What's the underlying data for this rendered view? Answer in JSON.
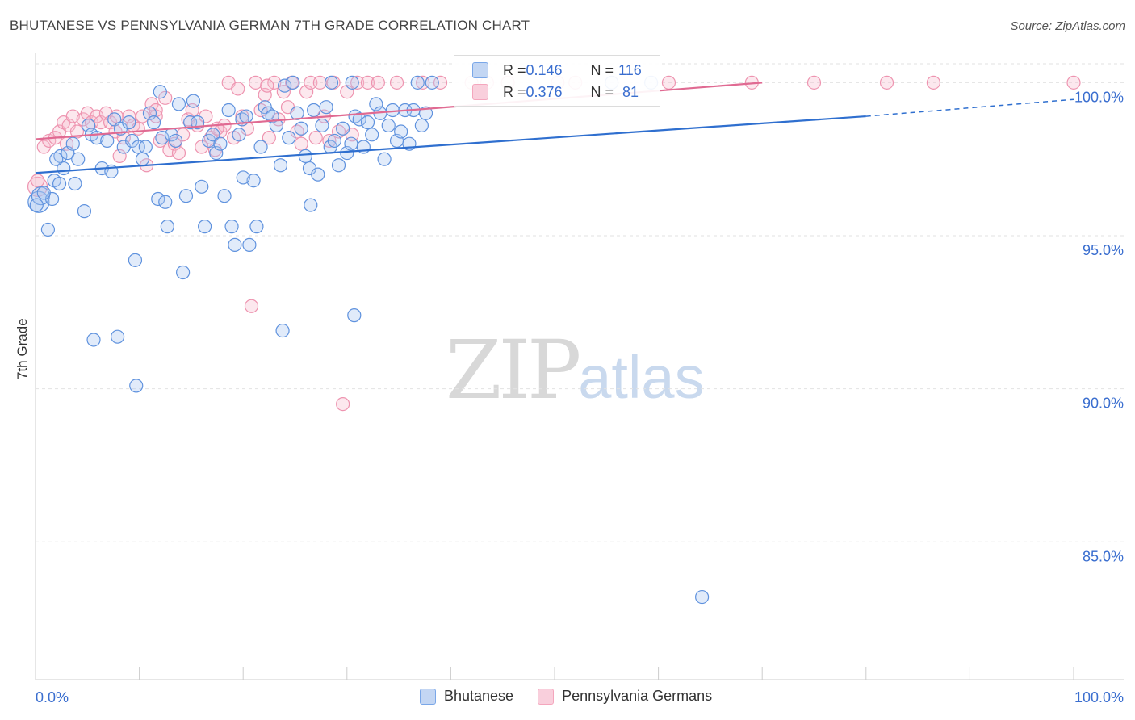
{
  "title": "BHUTANESE VS PENNSYLVANIA GERMAN 7TH GRADE CORRELATION CHART",
  "source": "Source: ZipAtlas.com",
  "watermark": {
    "zip": "ZIP",
    "atlas": "atlas"
  },
  "colors": {
    "blue": "#7aa7e8",
    "blue_line": "#2f6fcf",
    "pink": "#f4a6bd",
    "pink_line": "#e06a92",
    "axis_text": "#3a6ecf"
  },
  "stats": {
    "blue": {
      "r_label": "R = ",
      "r_value": "0.146",
      "n_label": "N = ",
      "n_value": "116"
    },
    "pink": {
      "r_label": "R = ",
      "r_value": "0.376",
      "n_label": "N = ",
      "n_value": " 81"
    }
  },
  "legend": {
    "blue_label": "Bhutanese",
    "pink_label": "Pennsylvania Germans"
  },
  "chart_data": {
    "type": "scatter",
    "xlabel": "",
    "ylabel": "7th Grade",
    "xlim": [
      0,
      100
    ],
    "ylim": [
      80.5,
      100.8
    ],
    "x_tick_labels": [
      "0.0%",
      "100.0%"
    ],
    "y_ticks": [
      {
        "value": 100,
        "label": "100.0%"
      },
      {
        "value": 95,
        "label": "95.0%"
      },
      {
        "value": 90,
        "label": "90.0%"
      },
      {
        "value": 85,
        "label": "85.0%"
      }
    ],
    "series": [
      {
        "name": "Bhutanese",
        "color": "#7aa7e8",
        "trend": {
          "x0": 0,
          "y0": 97.05,
          "x1": 80,
          "y1": 98.9,
          "dash_to": 100,
          "dash_y": 99.45
        },
        "points": [
          [
            0.3,
            96.1
          ],
          [
            0.5,
            96.3
          ],
          [
            1.2,
            95.2
          ],
          [
            1.6,
            96.2
          ],
          [
            1.8,
            96.8
          ],
          [
            2.3,
            96.7
          ],
          [
            2.4,
            97.6
          ],
          [
            2.7,
            97.2
          ],
          [
            3.1,
            97.7
          ],
          [
            3.6,
            98.0
          ],
          [
            3.8,
            96.7
          ],
          [
            4.1,
            97.5
          ],
          [
            4.7,
            95.8
          ],
          [
            5.1,
            98.6
          ],
          [
            5.4,
            98.3
          ],
          [
            5.9,
            98.2
          ],
          [
            6.4,
            97.2
          ],
          [
            6.9,
            98.1
          ],
          [
            7.3,
            97.1
          ],
          [
            7.6,
            98.8
          ],
          [
            8.2,
            98.5
          ],
          [
            8.5,
            97.9
          ],
          [
            9.0,
            98.7
          ],
          [
            9.3,
            98.1
          ],
          [
            9.6,
            94.2
          ],
          [
            9.9,
            97.9
          ],
          [
            10.3,
            97.5
          ],
          [
            10.6,
            97.9
          ],
          [
            11.0,
            99.0
          ],
          [
            11.4,
            98.7
          ],
          [
            11.8,
            96.2
          ],
          [
            12.2,
            98.2
          ],
          [
            12.5,
            96.1
          ],
          [
            12.7,
            95.3
          ],
          [
            13.1,
            98.3
          ],
          [
            13.5,
            98.1
          ],
          [
            13.8,
            99.3
          ],
          [
            14.2,
            93.8
          ],
          [
            14.5,
            96.3
          ],
          [
            14.9,
            98.7
          ],
          [
            15.2,
            99.4
          ],
          [
            15.6,
            98.7
          ],
          [
            16.0,
            96.6
          ],
          [
            16.3,
            95.3
          ],
          [
            16.7,
            98.1
          ],
          [
            17.1,
            98.3
          ],
          [
            17.4,
            97.7
          ],
          [
            17.8,
            98.0
          ],
          [
            18.2,
            96.3
          ],
          [
            18.6,
            99.1
          ],
          [
            18.9,
            95.3
          ],
          [
            19.2,
            94.7
          ],
          [
            19.6,
            98.3
          ],
          [
            19.9,
            98.8
          ],
          [
            20.3,
            98.9
          ],
          [
            20.6,
            94.7
          ],
          [
            21.0,
            96.8
          ],
          [
            21.3,
            95.3
          ],
          [
            21.7,
            97.9
          ],
          [
            22.1,
            99.2
          ],
          [
            22.4,
            99.0
          ],
          [
            22.8,
            98.9
          ],
          [
            23.2,
            98.6
          ],
          [
            23.6,
            97.3
          ],
          [
            24.0,
            99.9
          ],
          [
            24.4,
            98.2
          ],
          [
            24.8,
            100.0
          ],
          [
            25.2,
            99.0
          ],
          [
            25.6,
            98.5
          ],
          [
            26.0,
            97.6
          ],
          [
            26.4,
            97.2
          ],
          [
            26.8,
            99.1
          ],
          [
            27.2,
            97.0
          ],
          [
            27.6,
            98.6
          ],
          [
            28.0,
            99.2
          ],
          [
            28.4,
            97.9
          ],
          [
            28.8,
            98.1
          ],
          [
            29.2,
            97.3
          ],
          [
            29.6,
            98.5
          ],
          [
            30.0,
            97.7
          ],
          [
            30.4,
            98.0
          ],
          [
            30.8,
            98.9
          ],
          [
            31.2,
            98.8
          ],
          [
            31.6,
            97.9
          ],
          [
            32.0,
            98.7
          ],
          [
            32.4,
            98.3
          ],
          [
            32.8,
            99.3
          ],
          [
            33.2,
            99.0
          ],
          [
            33.6,
            97.5
          ],
          [
            34.0,
            98.6
          ],
          [
            34.4,
            99.1
          ],
          [
            34.8,
            98.1
          ],
          [
            35.2,
            98.4
          ],
          [
            35.6,
            99.1
          ],
          [
            36.0,
            98.0
          ],
          [
            36.4,
            99.1
          ],
          [
            36.8,
            100.0
          ],
          [
            37.2,
            98.6
          ],
          [
            37.6,
            99.0
          ],
          [
            38.2,
            100.0
          ],
          [
            5.6,
            91.6
          ],
          [
            7.9,
            91.7
          ],
          [
            9.7,
            90.1
          ],
          [
            23.8,
            91.9
          ],
          [
            30.7,
            92.4
          ],
          [
            20.0,
            96.9
          ],
          [
            26.5,
            96.0
          ],
          [
            12.0,
            99.7
          ],
          [
            28.5,
            100.0
          ],
          [
            30.5,
            100.0
          ],
          [
            55.5,
            100.0
          ],
          [
            59.3,
            100.0
          ],
          [
            64.2,
            83.2
          ],
          [
            0.1,
            96.0
          ],
          [
            0.8,
            96.4
          ],
          [
            2.0,
            97.5
          ]
        ],
        "radii": {
          "default": 8,
          "0": 13,
          "1": 11
        }
      },
      {
        "name": "Pennsylvania Germans",
        "color": "#f4a6bd",
        "trend": {
          "x0": 0,
          "y0": 98.15,
          "x1": 70,
          "y1": 100.0
        },
        "points": [
          [
            0.2,
            96.6
          ],
          [
            0.8,
            97.9
          ],
          [
            1.3,
            98.1
          ],
          [
            1.9,
            98.2
          ],
          [
            2.3,
            98.4
          ],
          [
            2.7,
            98.7
          ],
          [
            3.2,
            98.6
          ],
          [
            3.6,
            98.9
          ],
          [
            4.0,
            98.4
          ],
          [
            4.6,
            98.8
          ],
          [
            5.0,
            99.0
          ],
          [
            5.4,
            98.7
          ],
          [
            5.9,
            98.9
          ],
          [
            6.3,
            98.7
          ],
          [
            6.8,
            99.0
          ],
          [
            7.2,
            98.7
          ],
          [
            7.7,
            98.4
          ],
          [
            8.1,
            97.6
          ],
          [
            8.5,
            98.2
          ],
          [
            9.0,
            98.9
          ],
          [
            9.4,
            98.6
          ],
          [
            9.9,
            98.5
          ],
          [
            10.3,
            98.9
          ],
          [
            10.7,
            97.3
          ],
          [
            11.2,
            99.3
          ],
          [
            11.6,
            98.9
          ],
          [
            12.0,
            98.1
          ],
          [
            12.5,
            99.5
          ],
          [
            12.9,
            97.8
          ],
          [
            13.4,
            98.0
          ],
          [
            13.8,
            97.7
          ],
          [
            14.2,
            98.3
          ],
          [
            14.7,
            98.8
          ],
          [
            15.1,
            99.1
          ],
          [
            15.6,
            98.6
          ],
          [
            16.0,
            97.9
          ],
          [
            16.4,
            98.9
          ],
          [
            16.9,
            98.2
          ],
          [
            17.3,
            97.8
          ],
          [
            17.8,
            98.4
          ],
          [
            18.2,
            98.6
          ],
          [
            18.6,
            100.0
          ],
          [
            19.1,
            98.2
          ],
          [
            19.5,
            99.8
          ],
          [
            19.9,
            98.9
          ],
          [
            20.4,
            98.5
          ],
          [
            20.8,
            92.7
          ],
          [
            21.2,
            100.0
          ],
          [
            21.7,
            99.1
          ],
          [
            22.1,
            99.6
          ],
          [
            22.5,
            98.2
          ],
          [
            23.0,
            100.0
          ],
          [
            23.4,
            98.8
          ],
          [
            23.9,
            99.7
          ],
          [
            24.3,
            99.2
          ],
          [
            24.7,
            100.0
          ],
          [
            25.2,
            98.4
          ],
          [
            25.6,
            98.0
          ],
          [
            26.1,
            99.7
          ],
          [
            26.5,
            100.0
          ],
          [
            27.0,
            98.2
          ],
          [
            27.4,
            100.0
          ],
          [
            27.8,
            98.9
          ],
          [
            28.3,
            98.1
          ],
          [
            28.7,
            100.0
          ],
          [
            29.2,
            98.4
          ],
          [
            29.6,
            89.5
          ],
          [
            30.0,
            99.7
          ],
          [
            30.5,
            98.3
          ],
          [
            31.0,
            100.0
          ],
          [
            32.0,
            100.0
          ],
          [
            34.8,
            100.0
          ],
          [
            39.0,
            100.0
          ],
          [
            42.0,
            100.0
          ],
          [
            45.5,
            100.0
          ],
          [
            50.3,
            100.0
          ],
          [
            61.0,
            100.0
          ],
          [
            69.0,
            100.0
          ],
          [
            75.0,
            100.0
          ],
          [
            82.0,
            100.0
          ],
          [
            86.5,
            100.0
          ]
        ],
        "extra_points": [
          [
            11.6,
            99.1
          ],
          [
            17.5,
            98.5
          ],
          [
            0.2,
            96.8
          ],
          [
            3.0,
            98.0
          ],
          [
            7.8,
            98.9
          ],
          [
            22.3,
            99.9
          ],
          [
            33.0,
            100.0
          ],
          [
            37.3,
            100.0
          ],
          [
            43.5,
            100.0
          ],
          [
            52.0,
            100.0
          ],
          [
            100.0,
            100.0
          ]
        ],
        "radii": {
          "default": 8,
          "0": 12
        }
      }
    ]
  }
}
